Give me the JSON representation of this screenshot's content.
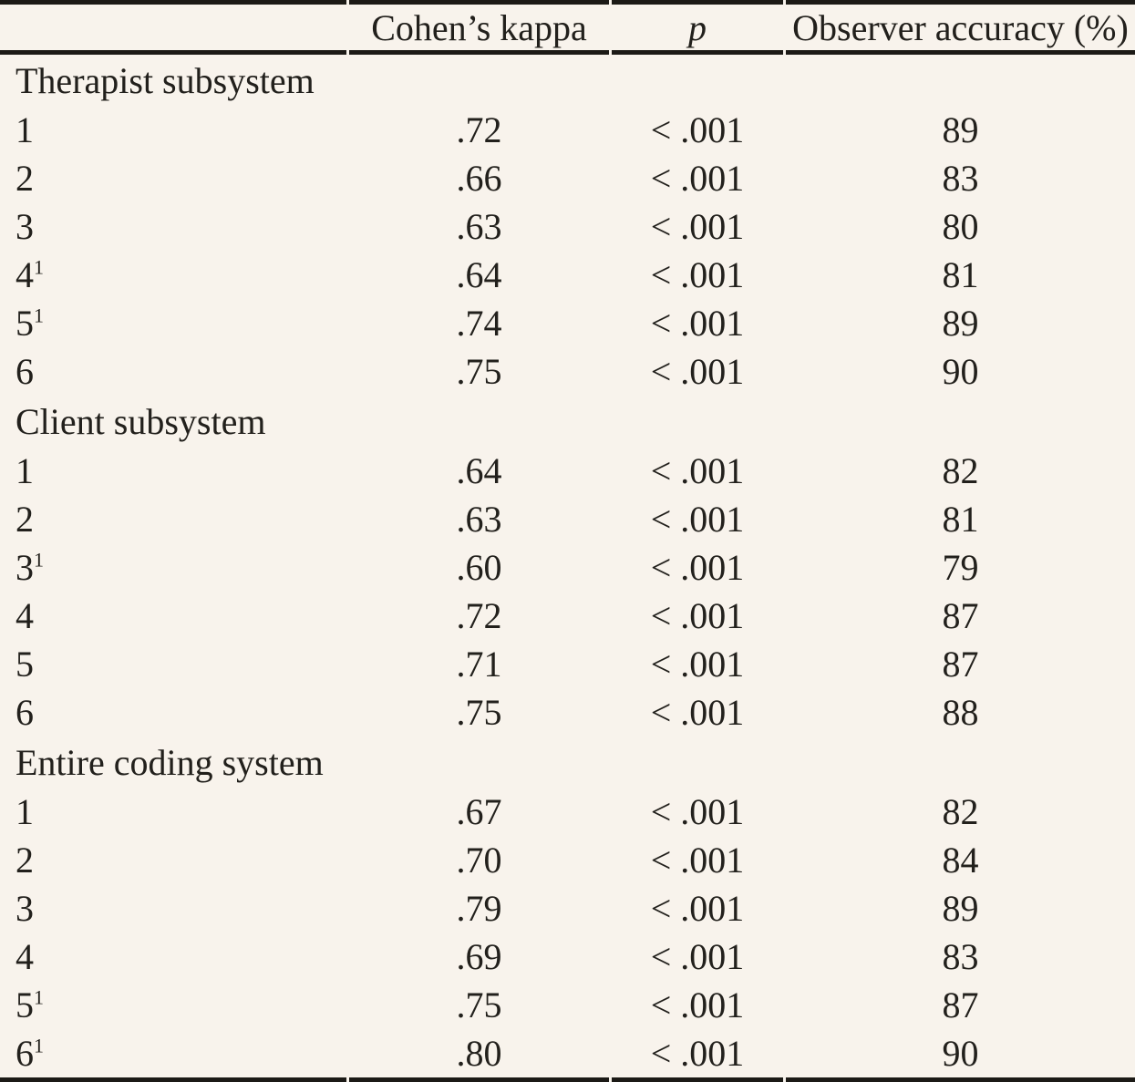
{
  "page": {
    "background_color": "#f8f3ec",
    "text_color": "#22201c",
    "rule_color": "#1c1a16"
  },
  "table": {
    "columns": [
      {
        "key": "label",
        "label": ""
      },
      {
        "key": "kappa",
        "label": "Cohen’s kappa"
      },
      {
        "key": "p",
        "label": "p"
      },
      {
        "key": "accuracy",
        "label": "Observer accuracy (%)"
      }
    ],
    "groups": [
      {
        "header": "Therapist subsystem",
        "rows": [
          {
            "label": "1",
            "footnote": "",
            "kappa": ".72",
            "p": "< .001",
            "accuracy": "89"
          },
          {
            "label": "2",
            "footnote": "",
            "kappa": ".66",
            "p": "< .001",
            "accuracy": "83"
          },
          {
            "label": "3",
            "footnote": "",
            "kappa": ".63",
            "p": "< .001",
            "accuracy": "80"
          },
          {
            "label": "4",
            "footnote": "1",
            "kappa": ".64",
            "p": "< .001",
            "accuracy": "81"
          },
          {
            "label": "5",
            "footnote": "1",
            "kappa": ".74",
            "p": "< .001",
            "accuracy": "89"
          },
          {
            "label": "6",
            "footnote": "",
            "kappa": ".75",
            "p": "< .001",
            "accuracy": "90"
          }
        ]
      },
      {
        "header": "Client subsystem",
        "rows": [
          {
            "label": "1",
            "footnote": "",
            "kappa": ".64",
            "p": "< .001",
            "accuracy": "82"
          },
          {
            "label": "2",
            "footnote": "",
            "kappa": ".63",
            "p": "< .001",
            "accuracy": "81"
          },
          {
            "label": "3",
            "footnote": "1",
            "kappa": ".60",
            "p": "< .001",
            "accuracy": "79"
          },
          {
            "label": "4",
            "footnote": "",
            "kappa": ".72",
            "p": "< .001",
            "accuracy": "87"
          },
          {
            "label": "5",
            "footnote": "",
            "kappa": ".71",
            "p": "< .001",
            "accuracy": "87"
          },
          {
            "label": "6",
            "footnote": "",
            "kappa": ".75",
            "p": "< .001",
            "accuracy": "88"
          }
        ]
      },
      {
        "header": "Entire coding system",
        "rows": [
          {
            "label": "1",
            "footnote": "",
            "kappa": ".67",
            "p": "< .001",
            "accuracy": "82"
          },
          {
            "label": "2",
            "footnote": "",
            "kappa": ".70",
            "p": "< .001",
            "accuracy": "84"
          },
          {
            "label": "3",
            "footnote": "",
            "kappa": ".79",
            "p": "< .001",
            "accuracy": "89"
          },
          {
            "label": "4",
            "footnote": "",
            "kappa": ".69",
            "p": "< .001",
            "accuracy": "83"
          },
          {
            "label": "5",
            "footnote": "1",
            "kappa": ".75",
            "p": "< .001",
            "accuracy": "87"
          },
          {
            "label": "6",
            "footnote": "1",
            "kappa": ".80",
            "p": "< .001",
            "accuracy": "90"
          }
        ]
      }
    ]
  }
}
